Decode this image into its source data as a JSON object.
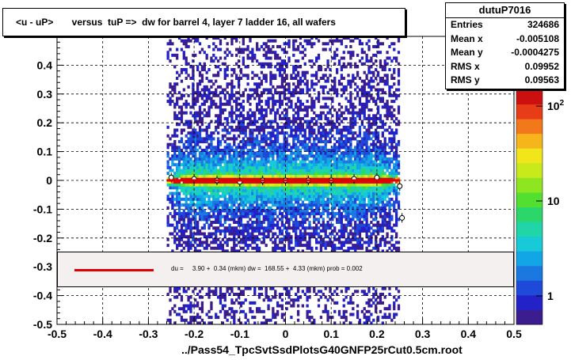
{
  "title": "<u - uP>       versus  tuP =>  dw for barrel 4, layer 7 ladder 16, all wafers",
  "stats": {
    "name": "dutuP7016",
    "rows": [
      {
        "label": "Entries",
        "value": "324686"
      },
      {
        "label": "Mean x",
        "value": "-0.005108"
      },
      {
        "label": "Mean y",
        "value": "-0.0004275"
      },
      {
        "label": "RMS x",
        "value": "0.09952"
      },
      {
        "label": "RMS y",
        "value": "0.09563"
      }
    ]
  },
  "legend": {
    "text": "du =     3.90 +  0.34 (mkm) dw =  168.55 +  4.33 (mkm) prob = 0.002",
    "line_color": "#e00000"
  },
  "footer": "../Pass54_TpcSvtSsdPlotsG40GNFP25rCut0.5cm.root",
  "chart_data": {
    "type": "heatmap",
    "title": "<u - uP>       versus  tuP =>  dw for barrel 4, layer 7 ladder 16, all wafers",
    "xlabel": "",
    "ylabel": "",
    "xlim": [
      -0.5,
      0.5
    ],
    "ylim": [
      -0.5,
      0.5
    ],
    "x_ticks": [
      "-0.5",
      "-0.4",
      "-0.3",
      "-0.2",
      "-0.1",
      "0",
      "0.1",
      "0.2",
      "0.3",
      "0.4",
      "0.5"
    ],
    "y_ticks": [
      "-0.5",
      "-0.4",
      "-0.3",
      "-0.2",
      "-0.1",
      "0",
      "0.1",
      "0.2",
      "0.3",
      "0.4"
    ],
    "grid": true,
    "color_scale": {
      "type": "log",
      "labels": [
        "1",
        "10",
        "10^2"
      ],
      "values": [
        1,
        10,
        100
      ]
    },
    "band": {
      "x_range": [
        -0.26,
        0.25
      ],
      "y_center": 0.0
    },
    "profile_points": {
      "x": [
        -0.25,
        -0.2,
        -0.15,
        -0.1,
        -0.05,
        0.0,
        0.05,
        0.1,
        0.15,
        0.2,
        0.25,
        0.255
      ],
      "y": [
        0.01,
        0.005,
        0.0,
        -0.005,
        0.0,
        0.0,
        0.0,
        0.0,
        0.005,
        0.01,
        -0.02,
        -0.13
      ]
    },
    "fit_line": {
      "x": [
        -0.26,
        0.25
      ],
      "y": [
        0.0,
        0.0
      ],
      "color": "#e00000"
    }
  }
}
